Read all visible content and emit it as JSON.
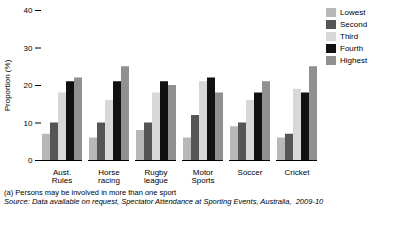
{
  "chart_data": {
    "type": "bar",
    "categories": [
      "Aust. Rules",
      "Horse racing",
      "Rugby league",
      "Motor Sports",
      "Soccer",
      "Cricket"
    ],
    "series": [
      {
        "name": "Lowest",
        "color": "#b8b8b8",
        "values": [
          7,
          6,
          8,
          6,
          9,
          6
        ]
      },
      {
        "name": "Second",
        "color": "#555555",
        "values": [
          10,
          10,
          10,
          12,
          10,
          7
        ]
      },
      {
        "name": "Third",
        "color": "#d8d8d8",
        "values": [
          18,
          16,
          18,
          21,
          16,
          19
        ]
      },
      {
        "name": "Fourth",
        "color": "#111111",
        "values": [
          21,
          21,
          21,
          22,
          18,
          18
        ]
      },
      {
        "name": "Highest",
        "color": "#909090",
        "values": [
          22,
          25,
          20,
          18,
          21,
          25
        ]
      }
    ],
    "ylabel": "Proportion (%)",
    "ylim": [
      0,
      40
    ],
    "yticks": [
      0,
      10,
      20,
      30,
      40
    ],
    "legend": "upper right",
    "annotations": [
      "(a) Persons may be involved in more than one sport",
      "Source: Data available on request, Spectator Attendance at Sporting Events, Australia,  2009-10"
    ]
  }
}
